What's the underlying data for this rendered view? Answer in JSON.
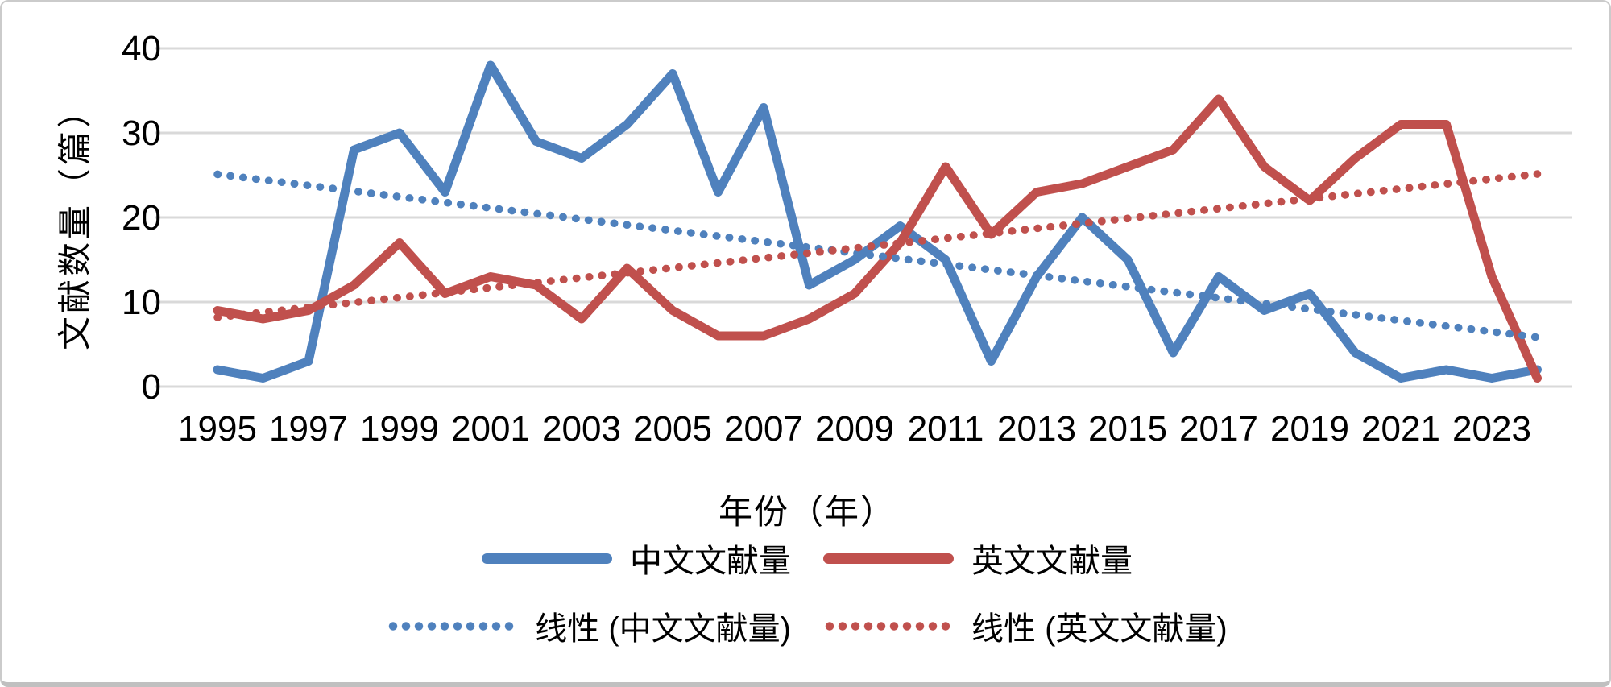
{
  "chart_data": {
    "type": "line",
    "title": "",
    "xlabel": "年份（年）",
    "ylabel": "文献数量（篇）",
    "ylim": [
      0,
      40
    ],
    "yticks": [
      0,
      10,
      20,
      30,
      40
    ],
    "xticks": [
      1995,
      1997,
      1999,
      2001,
      2003,
      2005,
      2007,
      2009,
      2011,
      2013,
      2015,
      2017,
      2019,
      2021,
      2023
    ],
    "grid": "horizontal",
    "legend_position": "bottom",
    "x": [
      1995,
      1996,
      1997,
      1998,
      1999,
      2000,
      2001,
      2002,
      2003,
      2004,
      2005,
      2006,
      2007,
      2008,
      2009,
      2010,
      2011,
      2012,
      2013,
      2014,
      2015,
      2016,
      2017,
      2018,
      2019,
      2020,
      2021,
      2022,
      2023,
      2024
    ],
    "series": [
      {
        "name": "中文文献量",
        "color": "#4F81BD",
        "style": "solid",
        "values": [
          2,
          1,
          3,
          28,
          30,
          23,
          38,
          29,
          27,
          31,
          37,
          23,
          33,
          12,
          15,
          19,
          15,
          3,
          13,
          20,
          15,
          4,
          13,
          9,
          11,
          4,
          1,
          2,
          1,
          2
        ]
      },
      {
        "name": "英文文献量",
        "color": "#C0504D",
        "style": "solid",
        "values": [
          9,
          8,
          9,
          12,
          17,
          11,
          13,
          12,
          8,
          14,
          9,
          6,
          6,
          8,
          11,
          17,
          26,
          18,
          23,
          24,
          26,
          28,
          34,
          26,
          22,
          27,
          31,
          31,
          13,
          1
        ]
      },
      {
        "name": "线性 (中文文献量)",
        "color": "#4F81BD",
        "style": "dotted",
        "trend_of": 0
      },
      {
        "name": "线性 (英文文献量)",
        "color": "#C0504D",
        "style": "dotted",
        "trend_of": 1
      }
    ],
    "gridline_color": "#D9D9D9",
    "text_color": "#000000"
  }
}
